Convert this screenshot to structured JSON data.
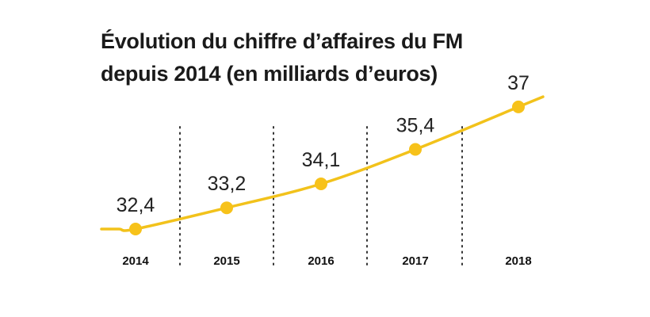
{
  "title": {
    "line1": "Évolution du chiffre d’affaires du FM",
    "line2": "depuis 2014 (en milliards d’euros)"
  },
  "colors": {
    "line": "#f2c21b",
    "marker": "#f7c21a",
    "separator": "#333333"
  },
  "chart_data": {
    "type": "line",
    "title": "Évolution du chiffre d’affaires du FM depuis 2014 (en milliards d’euros)",
    "xlabel": "",
    "ylabel": "",
    "categories": [
      "2014",
      "2015",
      "2016",
      "2017",
      "2018"
    ],
    "values": [
      32.4,
      33.2,
      34.1,
      35.4,
      37
    ],
    "value_labels": [
      "32,4",
      "33,2",
      "34,1",
      "35,4",
      "37"
    ],
    "grid": false,
    "legend": "none"
  }
}
